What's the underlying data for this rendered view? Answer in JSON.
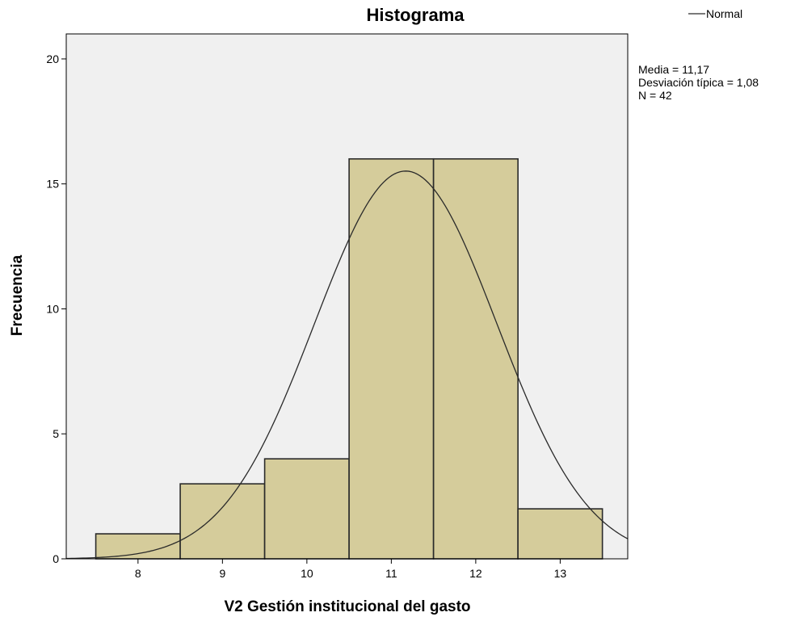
{
  "chart_data": {
    "type": "bar",
    "title": "Histograma",
    "xlabel": "V2 Gestión institucional del gasto",
    "ylabel": "Frecuencia",
    "bin_width": 1,
    "x": [
      8,
      9,
      10,
      11,
      12,
      13
    ],
    "values": [
      1,
      3,
      4,
      16,
      16,
      2
    ],
    "xlim": [
      7.15,
      13.8
    ],
    "ylim": [
      0,
      21
    ],
    "x_ticks": [
      8,
      9,
      10,
      11,
      12,
      13
    ],
    "y_ticks": [
      0,
      5,
      10,
      15,
      20
    ],
    "grid": false,
    "legend": {
      "placement": "top-right",
      "entries": [
        "Normal"
      ]
    },
    "normal_curve": {
      "name": "Normal",
      "mean": 11.17,
      "sd": 1.08,
      "n": 42
    },
    "stats_lines": [
      "Media = 11,17",
      "Desviación típica = 1,08",
      "N = 42"
    ],
    "colors": {
      "bar_fill": "#D5CC9B",
      "bar_stroke": "#2A2A2A",
      "plot_bg": "#F0F0F0",
      "curve": "#2A2A2A"
    }
  }
}
